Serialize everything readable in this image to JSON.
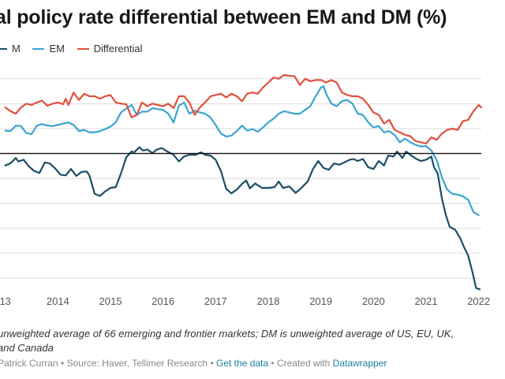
{
  "title": "al policy rate differential between EM and DM (%)",
  "legend": [
    {
      "label": "M",
      "color": "#1a4e66"
    },
    {
      "label": "EM",
      "color": "#3ba4d0"
    },
    {
      "label": "Differential",
      "color": "#e0503e"
    }
  ],
  "notes": {
    "line1": " unweighted average of 66 emerging and frontier markets; DM is unweighted average of US, EU, UK,",
    "line2": " and Canada"
  },
  "footer": {
    "byline": "Patrick Curran",
    "source": "Source: Haver, Tellimer Research",
    "get_data": "Get the data",
    "created_with": "Created with",
    "tool": "Datawrapper",
    "separator": "•"
  },
  "chart_data": {
    "type": "line",
    "x_ticks": [
      "13",
      "2014",
      "2015",
      "2016",
      "2017",
      "2018",
      "2019",
      "2020",
      "2021",
      "2022"
    ],
    "series": [
      {
        "name": "M",
        "color": "#1a4e66",
        "values": [
          [
            2013.0,
            -0.48
          ],
          [
            2013.1,
            -0.39
          ],
          [
            2013.2,
            -0.18
          ],
          [
            2013.25,
            -0.32
          ],
          [
            2013.35,
            -0.25
          ],
          [
            2013.45,
            -0.52
          ],
          [
            2013.55,
            -0.7
          ],
          [
            2013.65,
            -0.78
          ],
          [
            2013.75,
            -0.36
          ],
          [
            2013.85,
            -0.4
          ],
          [
            2013.95,
            -0.6
          ],
          [
            2014.05,
            -0.85
          ],
          [
            2014.15,
            -0.88
          ],
          [
            2014.25,
            -0.62
          ],
          [
            2014.35,
            -0.9
          ],
          [
            2014.45,
            -0.74
          ],
          [
            2014.55,
            -0.72
          ],
          [
            2014.6,
            -0.88
          ],
          [
            2014.7,
            -1.62
          ],
          [
            2014.8,
            -1.7
          ],
          [
            2014.9,
            -1.52
          ],
          [
            2015.0,
            -1.38
          ],
          [
            2015.1,
            -1.35
          ],
          [
            2015.2,
            -0.8
          ],
          [
            2015.3,
            -0.15
          ],
          [
            2015.4,
            0.08
          ],
          [
            2015.45,
            0.05
          ],
          [
            2015.55,
            0.25
          ],
          [
            2015.62,
            0.12
          ],
          [
            2015.7,
            0.16
          ],
          [
            2015.8,
            0.02
          ],
          [
            2015.88,
            0.16
          ],
          [
            2015.98,
            0.22
          ],
          [
            2016.08,
            0.08
          ],
          [
            2016.2,
            -0.05
          ],
          [
            2016.3,
            -0.32
          ],
          [
            2016.4,
            -0.12
          ],
          [
            2016.5,
            -0.05
          ],
          [
            2016.62,
            -0.05
          ],
          [
            2016.72,
            0.05
          ],
          [
            2016.8,
            -0.05
          ],
          [
            2016.9,
            -0.08
          ],
          [
            2017.0,
            -0.25
          ],
          [
            2017.1,
            -0.7
          ],
          [
            2017.2,
            -1.42
          ],
          [
            2017.3,
            -1.6
          ],
          [
            2017.4,
            -1.45
          ],
          [
            2017.5,
            -1.22
          ],
          [
            2017.58,
            -1.08
          ],
          [
            2017.65,
            -1.4
          ],
          [
            2017.75,
            -1.2
          ],
          [
            2017.88,
            -1.38
          ],
          [
            2018.0,
            -1.38
          ],
          [
            2018.12,
            -1.35
          ],
          [
            2018.2,
            -1.12
          ],
          [
            2018.28,
            -1.38
          ],
          [
            2018.4,
            -1.32
          ],
          [
            2018.52,
            -1.58
          ],
          [
            2018.62,
            -1.4
          ],
          [
            2018.75,
            -1.12
          ],
          [
            2018.85,
            -0.62
          ],
          [
            2018.95,
            -0.3
          ],
          [
            2019.05,
            -0.58
          ],
          [
            2019.15,
            -0.65
          ],
          [
            2019.25,
            -0.4
          ],
          [
            2019.35,
            -0.45
          ],
          [
            2019.45,
            -0.35
          ],
          [
            2019.55,
            -0.25
          ],
          [
            2019.62,
            -0.22
          ],
          [
            2019.7,
            -0.3
          ],
          [
            2019.8,
            -0.22
          ],
          [
            2019.9,
            -0.55
          ],
          [
            2020.0,
            -0.62
          ],
          [
            2020.1,
            -0.3
          ],
          [
            2020.2,
            -0.48
          ],
          [
            2020.28,
            -0.08
          ],
          [
            2020.38,
            -0.12
          ],
          [
            2020.45,
            0.08
          ],
          [
            2020.55,
            -0.18
          ],
          [
            2020.62,
            0.08
          ],
          [
            2020.72,
            -0.08
          ],
          [
            2020.82,
            -0.22
          ],
          [
            2020.9,
            -0.3
          ],
          [
            2021.0,
            -0.25
          ],
          [
            2021.1,
            -0.12
          ],
          [
            2021.15,
            -0.55
          ],
          [
            2021.22,
            -0.8
          ],
          [
            2021.3,
            -1.8
          ],
          [
            2021.38,
            -2.5
          ],
          [
            2021.45,
            -2.95
          ],
          [
            2021.55,
            -3.05
          ],
          [
            2021.65,
            -3.4
          ],
          [
            2021.72,
            -3.75
          ],
          [
            2021.8,
            -4.1
          ],
          [
            2021.88,
            -4.75
          ],
          [
            2021.95,
            -5.4
          ],
          [
            2022.02,
            -5.45
          ]
        ]
      },
      {
        "name": "EM",
        "color": "#3ba4d0",
        "values": [
          [
            2013.0,
            0.92
          ],
          [
            2013.1,
            0.9
          ],
          [
            2013.2,
            1.12
          ],
          [
            2013.3,
            1.1
          ],
          [
            2013.4,
            0.82
          ],
          [
            2013.5,
            0.78
          ],
          [
            2013.6,
            1.12
          ],
          [
            2013.7,
            1.18
          ],
          [
            2013.8,
            1.12
          ],
          [
            2013.9,
            1.1
          ],
          [
            2014.0,
            1.15
          ],
          [
            2014.1,
            1.2
          ],
          [
            2014.2,
            1.25
          ],
          [
            2014.3,
            1.15
          ],
          [
            2014.4,
            0.9
          ],
          [
            2014.5,
            0.95
          ],
          [
            2014.6,
            0.85
          ],
          [
            2014.7,
            0.85
          ],
          [
            2014.8,
            0.9
          ],
          [
            2014.9,
            0.98
          ],
          [
            2015.0,
            1.08
          ],
          [
            2015.1,
            1.25
          ],
          [
            2015.2,
            1.65
          ],
          [
            2015.3,
            1.8
          ],
          [
            2015.4,
            1.95
          ],
          [
            2015.5,
            1.55
          ],
          [
            2015.6,
            1.68
          ],
          [
            2015.7,
            1.68
          ],
          [
            2015.8,
            1.82
          ],
          [
            2015.9,
            1.78
          ],
          [
            2016.0,
            1.75
          ],
          [
            2016.1,
            1.6
          ],
          [
            2016.2,
            1.25
          ],
          [
            2016.3,
            1.92
          ],
          [
            2016.4,
            2.05
          ],
          [
            2016.5,
            1.6
          ],
          [
            2016.6,
            1.72
          ],
          [
            2016.7,
            1.65
          ],
          [
            2016.8,
            1.6
          ],
          [
            2016.9,
            1.45
          ],
          [
            2017.0,
            1.15
          ],
          [
            2017.1,
            0.8
          ],
          [
            2017.2,
            0.68
          ],
          [
            2017.3,
            0.72
          ],
          [
            2017.4,
            0.9
          ],
          [
            2017.5,
            1.12
          ],
          [
            2017.6,
            0.92
          ],
          [
            2017.7,
            0.98
          ],
          [
            2017.8,
            0.88
          ],
          [
            2017.9,
            1.05
          ],
          [
            2018.0,
            1.25
          ],
          [
            2018.1,
            1.4
          ],
          [
            2018.2,
            1.6
          ],
          [
            2018.3,
            1.7
          ],
          [
            2018.4,
            1.65
          ],
          [
            2018.5,
            1.6
          ],
          [
            2018.6,
            1.6
          ],
          [
            2018.7,
            1.75
          ],
          [
            2018.8,
            1.9
          ],
          [
            2018.9,
            2.3
          ],
          [
            2019.0,
            2.65
          ],
          [
            2019.05,
            2.7
          ],
          [
            2019.1,
            2.4
          ],
          [
            2019.2,
            2.0
          ],
          [
            2019.3,
            1.9
          ],
          [
            2019.4,
            2.1
          ],
          [
            2019.5,
            2.15
          ],
          [
            2019.6,
            2.0
          ],
          [
            2019.7,
            1.6
          ],
          [
            2019.8,
            1.55
          ],
          [
            2019.9,
            1.25
          ],
          [
            2020.0,
            1.05
          ],
          [
            2020.1,
            1.1
          ],
          [
            2020.2,
            0.85
          ],
          [
            2020.3,
            0.9
          ],
          [
            2020.4,
            0.75
          ],
          [
            2020.5,
            0.45
          ],
          [
            2020.6,
            0.6
          ],
          [
            2020.7,
            0.45
          ],
          [
            2020.8,
            0.35
          ],
          [
            2020.9,
            0.28
          ],
          [
            2021.0,
            0.3
          ],
          [
            2021.1,
            0.12
          ],
          [
            2021.2,
            -0.25
          ],
          [
            2021.3,
            -0.95
          ],
          [
            2021.4,
            -1.45
          ],
          [
            2021.5,
            -1.62
          ],
          [
            2021.6,
            -1.65
          ],
          [
            2021.7,
            -1.72
          ],
          [
            2021.8,
            -1.85
          ],
          [
            2021.9,
            -2.35
          ],
          [
            2022.0,
            -2.48
          ]
        ]
      },
      {
        "name": "Differential",
        "color": "#e0503e",
        "values": [
          [
            2013.0,
            1.85
          ],
          [
            2013.1,
            1.7
          ],
          [
            2013.2,
            1.6
          ],
          [
            2013.3,
            1.85
          ],
          [
            2013.4,
            2.0
          ],
          [
            2013.5,
            1.95
          ],
          [
            2013.6,
            2.05
          ],
          [
            2013.7,
            2.12
          ],
          [
            2013.8,
            1.92
          ],
          [
            2013.9,
            2.0
          ],
          [
            2014.0,
            2.05
          ],
          [
            2014.1,
            1.98
          ],
          [
            2014.15,
            2.2
          ],
          [
            2014.2,
            1.95
          ],
          [
            2014.3,
            2.45
          ],
          [
            2014.4,
            2.15
          ],
          [
            2014.5,
            2.4
          ],
          [
            2014.6,
            2.3
          ],
          [
            2014.7,
            2.3
          ],
          [
            2014.8,
            2.2
          ],
          [
            2014.9,
            2.3
          ],
          [
            2015.0,
            2.35
          ],
          [
            2015.1,
            2.05
          ],
          [
            2015.2,
            2.0
          ],
          [
            2015.3,
            1.98
          ],
          [
            2015.4,
            1.45
          ],
          [
            2015.5,
            1.55
          ],
          [
            2015.6,
            2.05
          ],
          [
            2015.7,
            1.9
          ],
          [
            2015.8,
            2.0
          ],
          [
            2015.9,
            1.95
          ],
          [
            2016.0,
            1.9
          ],
          [
            2016.1,
            2.0
          ],
          [
            2016.2,
            1.82
          ],
          [
            2016.3,
            2.3
          ],
          [
            2016.4,
            2.3
          ],
          [
            2016.5,
            2.05
          ],
          [
            2016.6,
            1.55
          ],
          [
            2016.7,
            1.85
          ],
          [
            2016.8,
            2.05
          ],
          [
            2016.9,
            2.3
          ],
          [
            2017.0,
            2.35
          ],
          [
            2017.1,
            2.4
          ],
          [
            2017.2,
            2.25
          ],
          [
            2017.3,
            2.4
          ],
          [
            2017.4,
            2.3
          ],
          [
            2017.5,
            2.1
          ],
          [
            2017.6,
            2.4
          ],
          [
            2017.7,
            2.45
          ],
          [
            2017.8,
            2.4
          ],
          [
            2017.9,
            2.65
          ],
          [
            2018.0,
            2.85
          ],
          [
            2018.1,
            3.05
          ],
          [
            2018.2,
            3.0
          ],
          [
            2018.3,
            3.15
          ],
          [
            2018.4,
            3.12
          ],
          [
            2018.5,
            3.1
          ],
          [
            2018.6,
            2.75
          ],
          [
            2018.7,
            3.0
          ],
          [
            2018.8,
            2.9
          ],
          [
            2018.9,
            2.95
          ],
          [
            2019.0,
            2.95
          ],
          [
            2019.1,
            2.85
          ],
          [
            2019.2,
            2.95
          ],
          [
            2019.3,
            2.85
          ],
          [
            2019.4,
            2.45
          ],
          [
            2019.5,
            2.35
          ],
          [
            2019.6,
            2.3
          ],
          [
            2019.7,
            2.3
          ],
          [
            2019.8,
            2.2
          ],
          [
            2019.9,
            1.95
          ],
          [
            2020.0,
            1.65
          ],
          [
            2020.1,
            1.55
          ],
          [
            2020.2,
            1.2
          ],
          [
            2020.3,
            1.35
          ],
          [
            2020.4,
            0.95
          ],
          [
            2020.5,
            0.85
          ],
          [
            2020.6,
            0.75
          ],
          [
            2020.7,
            0.7
          ],
          [
            2020.8,
            0.5
          ],
          [
            2020.9,
            0.45
          ],
          [
            2021.0,
            0.4
          ],
          [
            2021.1,
            0.65
          ],
          [
            2021.2,
            0.55
          ],
          [
            2021.3,
            0.8
          ],
          [
            2021.4,
            0.95
          ],
          [
            2021.5,
            1.0
          ],
          [
            2021.6,
            0.95
          ],
          [
            2021.7,
            1.3
          ],
          [
            2021.8,
            1.35
          ],
          [
            2021.9,
            1.7
          ],
          [
            2022.0,
            1.95
          ],
          [
            2022.05,
            1.85
          ]
        ]
      }
    ],
    "xlim": [
      2012.9,
      2022.05
    ],
    "ylim": [
      -5.5,
      3.5
    ],
    "y_gridlines": [
      3,
      2,
      1,
      0,
      -1,
      -2,
      -3,
      -4,
      -5
    ],
    "zero_line": 0,
    "grid": true
  }
}
